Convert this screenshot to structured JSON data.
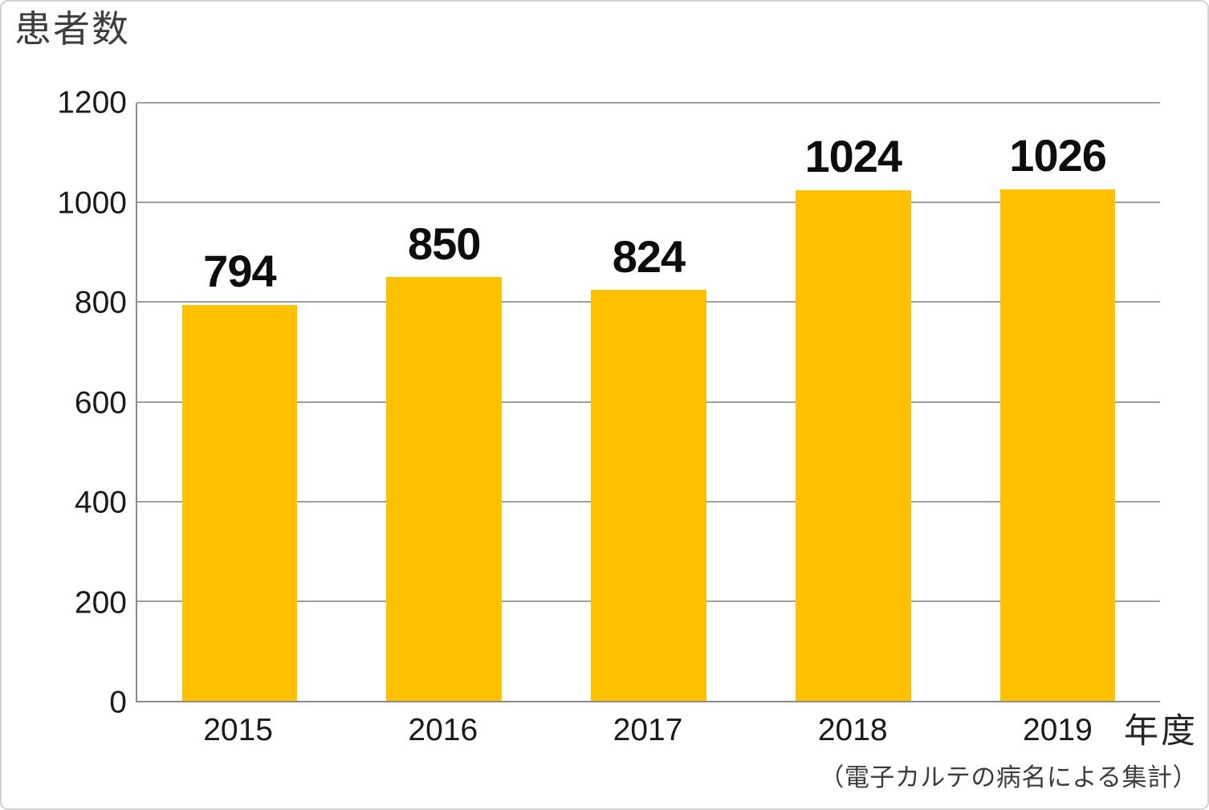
{
  "chart_data": {
    "type": "bar",
    "title": "患者数",
    "xlabel": "年度",
    "ylabel": "患者数",
    "categories": [
      "2015",
      "2016",
      "2017",
      "2018",
      "2019"
    ],
    "values": [
      794,
      850,
      824,
      1024,
      1026
    ],
    "data_labels": [
      "794",
      "850",
      "824",
      "1024",
      "1026"
    ],
    "ylim": [
      0,
      1200
    ],
    "ytick_step": 200,
    "yticks": [
      0,
      200,
      400,
      600,
      800,
      1000,
      1200
    ],
    "grid": "horizontal",
    "legend_position": "none",
    "bar_color": "#FFC000",
    "gridline_color": "#9e9e9e",
    "axis_line_color": "#8c8c8c",
    "note": "（電子カルテの病名による集計）"
  }
}
